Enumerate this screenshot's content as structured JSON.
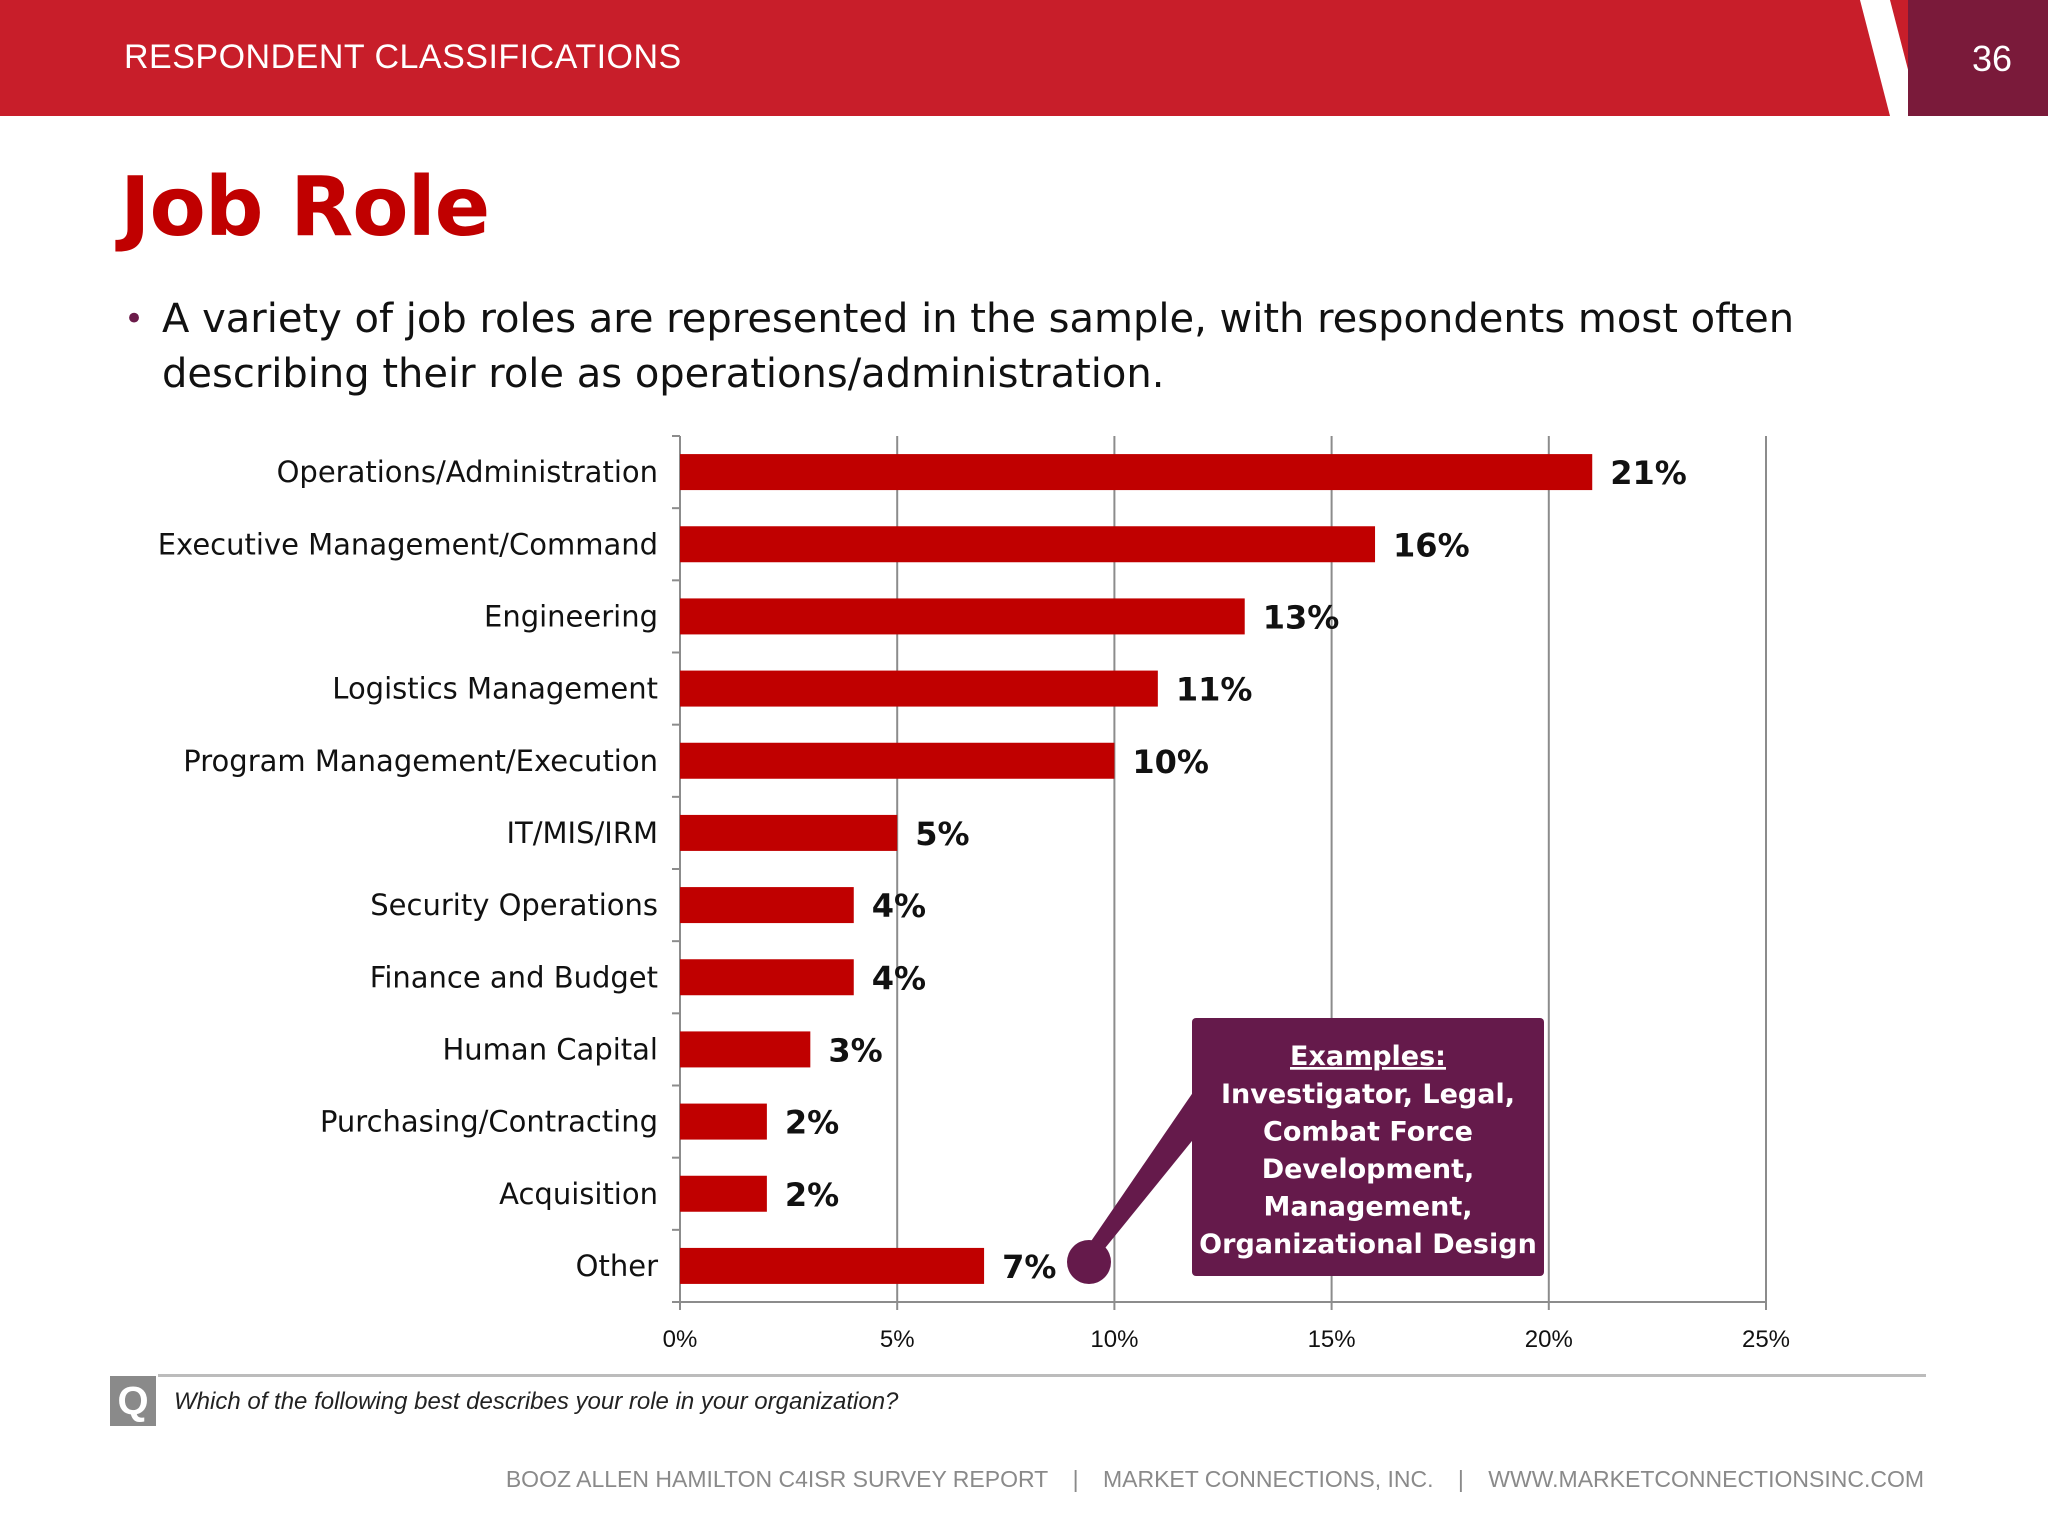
{
  "header": {
    "section_title": "RESPONDENT CLASSIFICATIONS",
    "page_number": "36",
    "colors": {
      "bar": "#c81e2a",
      "tab": "#7a1a3a"
    }
  },
  "slide": {
    "title": "Job Role",
    "bullet": "A variety of job roles are represented in the sample, with respondents most often describing their role as operations/administration."
  },
  "callout": {
    "heading": "Examples:",
    "lines": [
      "Investigator, Legal,",
      "Combat Force",
      "Development,",
      "Management,",
      "Organizational Design"
    ],
    "color": "#651a4b"
  },
  "chart_data": {
    "type": "bar",
    "orientation": "horizontal",
    "categories": [
      "Operations/Administration",
      "Executive Management/Command",
      "Engineering",
      "Logistics Management",
      "Program Management/Execution",
      "IT/MIS/IRM",
      "Security Operations",
      "Finance and Budget",
      "Human Capital",
      "Purchasing/Contracting",
      "Acquisition",
      "Other"
    ],
    "values": [
      21,
      16,
      13,
      11,
      10,
      5,
      4,
      4,
      3,
      2,
      2,
      7
    ],
    "data_labels": [
      "21%",
      "16%",
      "13%",
      "11%",
      "10%",
      "5%",
      "4%",
      "4%",
      "3%",
      "2%",
      "2%",
      "7%"
    ],
    "xlim": [
      0,
      25
    ],
    "x_ticks": [
      0,
      5,
      10,
      15,
      20,
      25
    ],
    "x_tick_labels": [
      "0%",
      "5%",
      "10%",
      "15%",
      "20%",
      "25%"
    ],
    "grid": true,
    "bar_color": "#c00000"
  },
  "question": {
    "badge": "Q",
    "text": "Which of the following best describes your role in your organization?"
  },
  "footer": {
    "report": "BOOZ ALLEN HAMILTON C4ISR SURVEY REPORT",
    "separator": "|",
    "company": "MARKET CONNECTIONS, INC.",
    "website": "WWW.MARKETCONNECTIONSINC.COM"
  }
}
